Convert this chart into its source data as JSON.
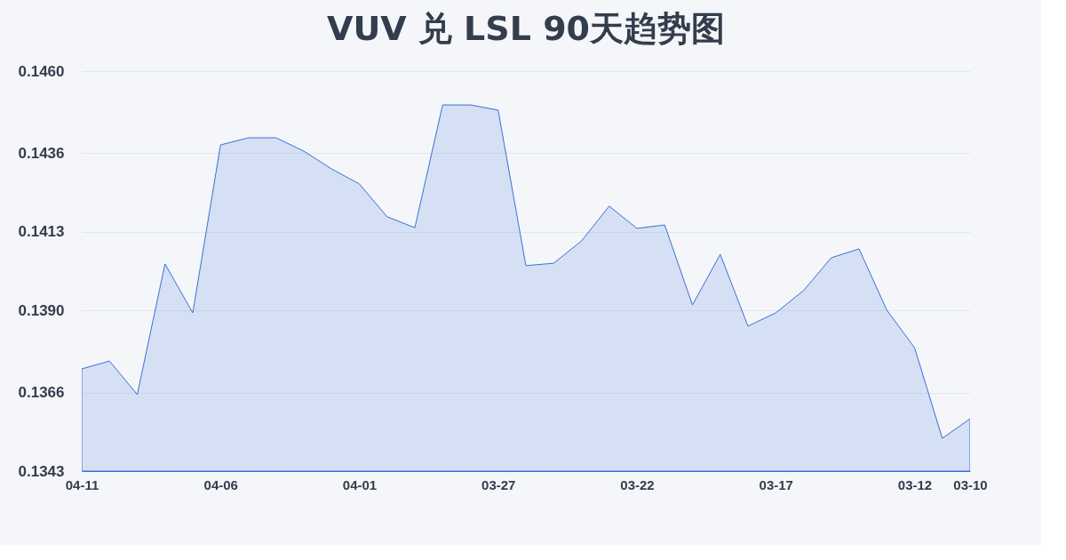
{
  "chart_data": {
    "type": "area",
    "title": "VUV 兑 LSL 90天趋势图",
    "categories": [
      "04-11",
      null,
      null,
      null,
      null,
      "04-06",
      null,
      null,
      null,
      null,
      "04-01",
      null,
      null,
      null,
      null,
      "03-27",
      null,
      null,
      null,
      null,
      "03-22",
      null,
      null,
      null,
      null,
      "03-17",
      null,
      null,
      null,
      null,
      "03-12",
      null,
      "03-10"
    ],
    "series": [
      {
        "color": "#3a6fd8",
        "values": [
          0.13729,
          0.13752,
          0.13654,
          0.14036,
          0.13893,
          0.14384,
          0.14405,
          0.14405,
          0.14366,
          0.14314,
          0.1427,
          0.14174,
          0.14142,
          0.14501,
          0.14501,
          0.14486,
          0.14031,
          0.14038,
          0.14103,
          0.14205,
          0.1414,
          0.1415,
          0.13916,
          0.14064,
          0.13854,
          0.13893,
          0.13958,
          0.14054,
          0.1408,
          0.13901,
          0.13791,
          0.13526,
          0.13583
        ]
      }
    ],
    "ylim": [
      0.1343,
      0.146
    ],
    "yticks": [
      {
        "value": 0.1343,
        "label": "0.1343"
      },
      {
        "value": 0.1366,
        "label": "0.1366"
      },
      {
        "value": 0.139,
        "label": "0.1390"
      },
      {
        "value": 0.1413,
        "label": "0.1413"
      },
      {
        "value": 0.1436,
        "label": "0.1436"
      },
      {
        "value": 0.146,
        "label": "0.1460"
      }
    ],
    "grid": "y"
  }
}
